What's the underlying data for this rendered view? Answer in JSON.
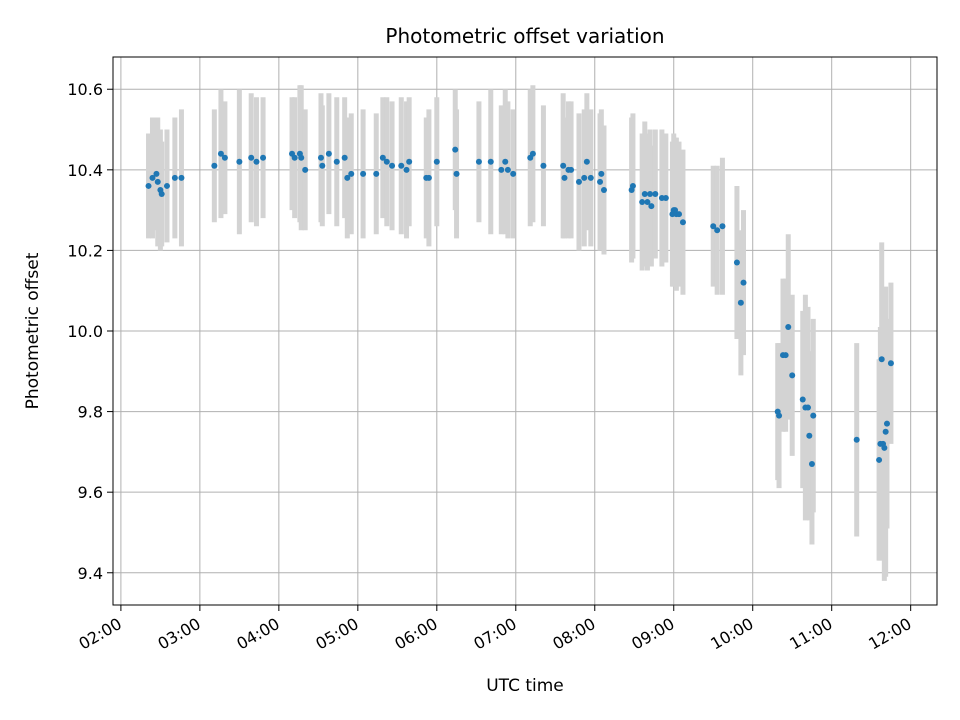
{
  "chart_data": {
    "type": "scatter",
    "title": "Photometric offset variation",
    "xlabel": "UTC time",
    "ylabel": "Photometric offset",
    "x_is_time": true,
    "xlim": [
      "01:54",
      "12:20"
    ],
    "ylim": [
      9.32,
      10.68
    ],
    "x_ticks": [
      "02:00",
      "03:00",
      "04:00",
      "05:00",
      "06:00",
      "07:00",
      "08:00",
      "09:00",
      "10:00",
      "11:00",
      "12:00"
    ],
    "y_ticks": [
      9.4,
      9.6,
      9.8,
      10.0,
      10.2,
      10.4,
      10.6
    ],
    "y_tick_labels": [
      "9.4",
      "9.6",
      "9.8",
      "10.0",
      "10.2",
      "10.4",
      "10.6"
    ],
    "grid": true,
    "colors": {
      "point": "#1f77b4",
      "errorbar": "#d3d3d3",
      "grid": "#b0b0b0"
    },
    "series": [
      {
        "points": [
          {
            "x": "02:21",
            "y": 10.36,
            "err": 0.13
          },
          {
            "x": "02:24",
            "y": 10.38,
            "err": 0.15
          },
          {
            "x": "02:27",
            "y": 10.39,
            "err": 0.14
          },
          {
            "x": "02:28",
            "y": 10.37,
            "err": 0.16
          },
          {
            "x": "02:30",
            "y": 10.35,
            "err": 0.15
          },
          {
            "x": "02:31",
            "y": 10.34,
            "err": 0.13
          },
          {
            "x": "02:35",
            "y": 10.36,
            "err": 0.14
          },
          {
            "x": "02:41",
            "y": 10.38,
            "err": 0.15
          },
          {
            "x": "02:46",
            "y": 10.38,
            "err": 0.17
          },
          {
            "x": "03:11",
            "y": 10.41,
            "err": 0.14
          },
          {
            "x": "03:16",
            "y": 10.44,
            "err": 0.16
          },
          {
            "x": "03:19",
            "y": 10.43,
            "err": 0.14
          },
          {
            "x": "03:30",
            "y": 10.42,
            "err": 0.18
          },
          {
            "x": "03:39",
            "y": 10.43,
            "err": 0.16
          },
          {
            "x": "03:43",
            "y": 10.42,
            "err": 0.16
          },
          {
            "x": "03:48",
            "y": 10.43,
            "err": 0.15
          },
          {
            "x": "04:10",
            "y": 10.44,
            "err": 0.14
          },
          {
            "x": "04:12",
            "y": 10.43,
            "err": 0.15
          },
          {
            "x": "04:16",
            "y": 10.44,
            "err": 0.17
          },
          {
            "x": "04:17",
            "y": 10.43,
            "err": 0.18
          },
          {
            "x": "04:20",
            "y": 10.4,
            "err": 0.15
          },
          {
            "x": "04:32",
            "y": 10.43,
            "err": 0.16
          },
          {
            "x": "04:33",
            "y": 10.41,
            "err": 0.15
          },
          {
            "x": "04:38",
            "y": 10.44,
            "err": 0.15
          },
          {
            "x": "04:44",
            "y": 10.42,
            "err": 0.16
          },
          {
            "x": "04:50",
            "y": 10.43,
            "err": 0.15
          },
          {
            "x": "04:52",
            "y": 10.38,
            "err": 0.15
          },
          {
            "x": "04:55",
            "y": 10.39,
            "err": 0.15
          },
          {
            "x": "05:04",
            "y": 10.39,
            "err": 0.16
          },
          {
            "x": "05:14",
            "y": 10.39,
            "err": 0.15
          },
          {
            "x": "05:19",
            "y": 10.43,
            "err": 0.15
          },
          {
            "x": "05:22",
            "y": 10.42,
            "err": 0.16
          },
          {
            "x": "05:26",
            "y": 10.41,
            "err": 0.16
          },
          {
            "x": "05:33",
            "y": 10.41,
            "err": 0.17
          },
          {
            "x": "05:37",
            "y": 10.4,
            "err": 0.17
          },
          {
            "x": "05:39",
            "y": 10.42,
            "err": 0.16
          },
          {
            "x": "05:52",
            "y": 10.38,
            "err": 0.15
          },
          {
            "x": "05:54",
            "y": 10.38,
            "err": 0.17
          },
          {
            "x": "06:00",
            "y": 10.42,
            "err": 0.16
          },
          {
            "x": "06:14",
            "y": 10.45,
            "err": 0.15
          },
          {
            "x": "06:15",
            "y": 10.39,
            "err": 0.16
          },
          {
            "x": "06:32",
            "y": 10.42,
            "err": 0.15
          },
          {
            "x": "06:41",
            "y": 10.42,
            "err": 0.18
          },
          {
            "x": "06:49",
            "y": 10.4,
            "err": 0.16
          },
          {
            "x": "06:52",
            "y": 10.42,
            "err": 0.18
          },
          {
            "x": "06:54",
            "y": 10.4,
            "err": 0.17
          },
          {
            "x": "06:58",
            "y": 10.39,
            "err": 0.16
          },
          {
            "x": "07:11",
            "y": 10.43,
            "err": 0.17
          },
          {
            "x": "07:13",
            "y": 10.44,
            "err": 0.17
          },
          {
            "x": "07:21",
            "y": 10.41,
            "err": 0.15
          },
          {
            "x": "07:36",
            "y": 10.41,
            "err": 0.18
          },
          {
            "x": "07:37",
            "y": 10.38,
            "err": 0.15
          },
          {
            "x": "07:40",
            "y": 10.4,
            "err": 0.17
          },
          {
            "x": "07:42",
            "y": 10.4,
            "err": 0.17
          },
          {
            "x": "07:48",
            "y": 10.37,
            "err": 0.17
          },
          {
            "x": "07:52",
            "y": 10.38,
            "err": 0.17
          },
          {
            "x": "07:54",
            "y": 10.42,
            "err": 0.17
          },
          {
            "x": "07:57",
            "y": 10.38,
            "err": 0.17
          },
          {
            "x": "08:04",
            "y": 10.37,
            "err": 0.17
          },
          {
            "x": "08:05",
            "y": 10.39,
            "err": 0.16
          },
          {
            "x": "08:07",
            "y": 10.35,
            "err": 0.16
          },
          {
            "x": "08:28",
            "y": 10.35,
            "err": 0.18
          },
          {
            "x": "08:29",
            "y": 10.36,
            "err": 0.18
          },
          {
            "x": "08:36",
            "y": 10.32,
            "err": 0.17
          },
          {
            "x": "08:38",
            "y": 10.34,
            "err": 0.18
          },
          {
            "x": "08:40",
            "y": 10.32,
            "err": 0.17
          },
          {
            "x": "08:42",
            "y": 10.34,
            "err": 0.16
          },
          {
            "x": "08:43",
            "y": 10.31,
            "err": 0.15
          },
          {
            "x": "08:46",
            "y": 10.34,
            "err": 0.16
          },
          {
            "x": "08:51",
            "y": 10.33,
            "err": 0.17
          },
          {
            "x": "08:54",
            "y": 10.33,
            "err": 0.16
          },
          {
            "x": "08:59",
            "y": 10.29,
            "err": 0.18
          },
          {
            "x": "09:00",
            "y": 10.3,
            "err": 0.19
          },
          {
            "x": "09:01",
            "y": 10.3,
            "err": 0.18
          },
          {
            "x": "09:02",
            "y": 10.29,
            "err": 0.19
          },
          {
            "x": "09:04",
            "y": 10.29,
            "err": 0.18
          },
          {
            "x": "09:07",
            "y": 10.27,
            "err": 0.18
          },
          {
            "x": "09:30",
            "y": 10.26,
            "err": 0.15
          },
          {
            "x": "09:33",
            "y": 10.25,
            "err": 0.16
          },
          {
            "x": "09:37",
            "y": 10.26,
            "err": 0.17
          },
          {
            "x": "09:48",
            "y": 10.17,
            "err": 0.19
          },
          {
            "x": "09:51",
            "y": 10.07,
            "err": 0.18
          },
          {
            "x": "09:53",
            "y": 10.12,
            "err": 0.18
          },
          {
            "x": "10:19",
            "y": 9.8,
            "err": 0.17
          },
          {
            "x": "10:20",
            "y": 9.79,
            "err": 0.18
          },
          {
            "x": "10:23",
            "y": 9.94,
            "err": 0.19
          },
          {
            "x": "10:25",
            "y": 9.94,
            "err": 0.19
          },
          {
            "x": "10:27",
            "y": 10.01,
            "err": 0.23
          },
          {
            "x": "10:30",
            "y": 9.89,
            "err": 0.2
          },
          {
            "x": "10:38",
            "y": 9.83,
            "err": 0.22
          },
          {
            "x": "10:40",
            "y": 9.81,
            "err": 0.28
          },
          {
            "x": "10:42",
            "y": 9.81,
            "err": 0.25
          },
          {
            "x": "10:43",
            "y": 9.74,
            "err": 0.21
          },
          {
            "x": "10:45",
            "y": 9.67,
            "err": 0.2
          },
          {
            "x": "10:46",
            "y": 9.79,
            "err": 0.24
          },
          {
            "x": "11:19",
            "y": 9.73,
            "err": 0.24
          },
          {
            "x": "11:36",
            "y": 9.68,
            "err": 0.25
          },
          {
            "x": "11:37",
            "y": 9.72,
            "err": 0.29
          },
          {
            "x": "11:38",
            "y": 9.93,
            "err": 0.29
          },
          {
            "x": "11:39",
            "y": 9.72,
            "err": 0.27
          },
          {
            "x": "11:40",
            "y": 9.71,
            "err": 0.33
          },
          {
            "x": "11:41",
            "y": 9.75,
            "err": 0.36
          },
          {
            "x": "11:42",
            "y": 9.77,
            "err": 0.26
          },
          {
            "x": "11:45",
            "y": 9.92,
            "err": 0.2
          }
        ]
      }
    ]
  }
}
